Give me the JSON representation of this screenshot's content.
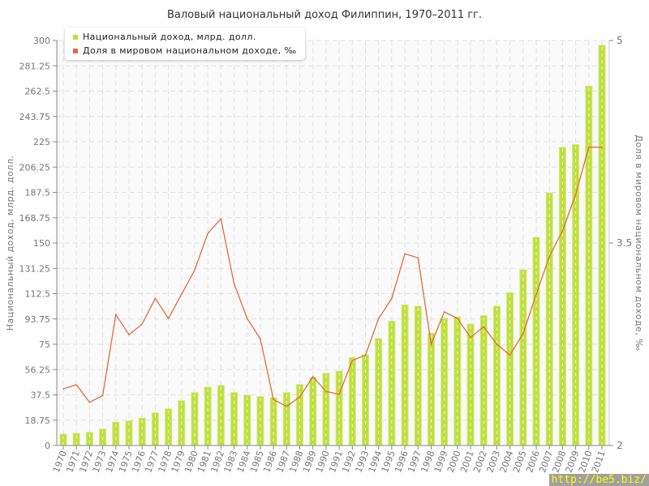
{
  "chart_data": {
    "type": "bar+line",
    "title": "Валовый национальный доход Филиппин, 1970–2011 гг.",
    "ylabel": "Национальный доход, млрд. долл.",
    "y2label": "Доля в мировом национальном доходе, ‰",
    "ylim": [
      0,
      300
    ],
    "y2lim": [
      2,
      5
    ],
    "yticks": [
      "0",
      "18.75",
      "37.5",
      "56.25",
      "75",
      "93.75",
      "112.5",
      "131.25",
      "150",
      "168.75",
      "187.5",
      "206.25",
      "225",
      "243.75",
      "262.5",
      "281.25",
      "300"
    ],
    "y2ticks": [
      "2",
      "3.5",
      "5"
    ],
    "grid": true,
    "legend_position": "top-left",
    "categories": [
      "1970",
      "1971",
      "1972",
      "1973",
      "1974",
      "1975",
      "1976",
      "1977",
      "1978",
      "1979",
      "1980",
      "1981",
      "1982",
      "1983",
      "1984",
      "1985",
      "1986",
      "1987",
      "1988",
      "1989",
      "1990",
      "1991",
      "1992",
      "1993",
      "1994",
      "1995",
      "1996",
      "1997",
      "1998",
      "1999",
      "2000",
      "2001",
      "2002",
      "2003",
      "2004",
      "2005",
      "2006",
      "2007",
      "2008",
      "2009",
      "2010",
      "2011"
    ],
    "series": [
      {
        "name": "Национальный доход, млрд. долл.",
        "type": "bar",
        "axis": "left",
        "color": "#bfdf3f",
        "values": [
          8.4,
          9.0,
          9.8,
          12.2,
          17.2,
          18.2,
          20.2,
          24.2,
          27.2,
          33.2,
          39.2,
          43.2,
          44.4,
          39.2,
          37.2,
          36.2,
          35.4,
          39.2,
          45.2,
          50.4,
          53.4,
          55.2,
          65.2,
          67.2,
          79.2,
          92.2,
          104.2,
          103.2,
          83.2,
          94.2,
          95.2,
          90.0,
          96.2,
          103.2,
          113.2,
          130.2,
          154.2,
          187.2,
          220.8,
          223.0,
          266.2,
          296.4
        ]
      },
      {
        "name": "Доля в мировом национальном доходе, ‰",
        "type": "line",
        "axis": "right",
        "color": "#e8693a",
        "values": [
          2.42,
          2.45,
          2.32,
          2.37,
          2.97,
          2.82,
          2.9,
          3.09,
          2.94,
          3.12,
          3.3,
          3.57,
          3.68,
          3.2,
          2.94,
          2.79,
          2.34,
          2.29,
          2.36,
          2.51,
          2.4,
          2.38,
          2.63,
          2.67,
          2.94,
          3.09,
          3.42,
          3.39,
          2.75,
          2.99,
          2.94,
          2.8,
          2.88,
          2.75,
          2.67,
          2.83,
          3.12,
          3.4,
          3.59,
          3.86,
          4.21,
          4.21
        ]
      }
    ]
  },
  "watermark": "http://be5.biz/"
}
